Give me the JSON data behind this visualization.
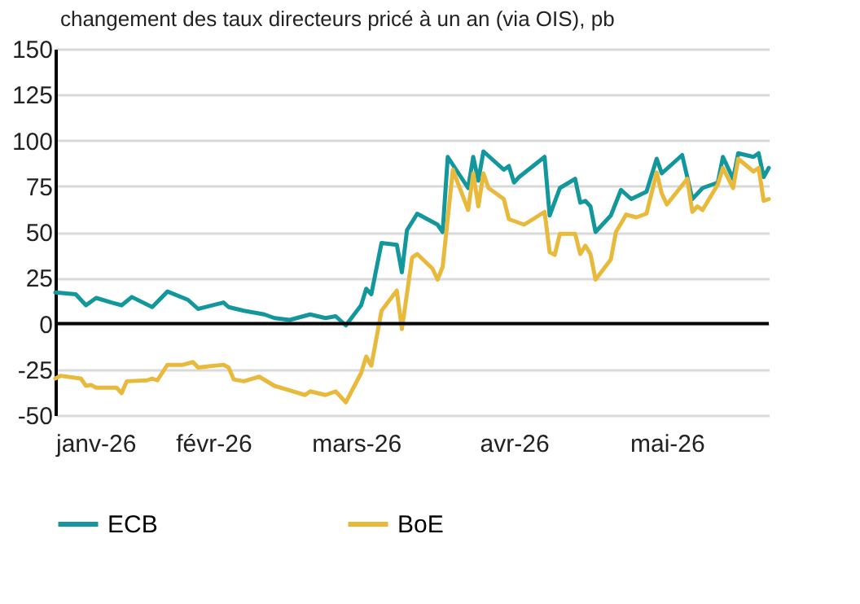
{
  "chart_data": {
    "type": "line",
    "title": "changement des taux directeurs pricé à un an (via OIS), pb",
    "xlim": [
      "2026-01-01",
      "2026-05-21"
    ],
    "xticks": [
      {
        "value": "2026-01-01",
        "label": "janv-26"
      },
      {
        "value": "2026-02-01",
        "label": "févr-26"
      },
      {
        "value": "2026-03-01",
        "label": "mars-26"
      },
      {
        "value": "2026-04-01",
        "label": "avr-26"
      },
      {
        "value": "2026-05-01",
        "label": "mai-26"
      }
    ],
    "ylim": [
      -50,
      150
    ],
    "yticks": [
      -50,
      -25,
      0,
      25,
      50,
      75,
      100,
      125,
      150
    ],
    "grid": "y",
    "legend": "bottom",
    "ref_lines": [
      {
        "axis": "y",
        "value": 0,
        "color": "#000000"
      }
    ],
    "series": [
      {
        "name": "ECB",
        "color": "#12979c",
        "x": [
          "2026-01-01",
          "2026-01-05",
          "2026-01-07",
          "2026-01-09",
          "2026-01-12",
          "2026-01-14",
          "2026-01-16",
          "2026-01-20",
          "2026-01-23",
          "2026-01-27",
          "2026-01-29",
          "2026-02-03",
          "2026-02-04",
          "2026-02-07",
          "2026-02-11",
          "2026-02-13",
          "2026-02-16",
          "2026-02-20",
          "2026-02-23",
          "2026-02-25",
          "2026-02-27",
          "2026-03-02",
          "2026-03-03",
          "2026-03-04",
          "2026-03-06",
          "2026-03-09",
          "2026-03-10",
          "2026-03-11",
          "2026-03-13",
          "2026-03-17",
          "2026-03-18",
          "2026-03-19",
          "2026-03-23",
          "2026-03-24",
          "2026-03-25",
          "2026-03-26",
          "2026-03-30",
          "2026-03-31",
          "2026-04-01",
          "2026-04-02",
          "2026-04-07",
          "2026-04-08",
          "2026-04-10",
          "2026-04-13",
          "2026-04-14",
          "2026-04-15",
          "2026-04-16",
          "2026-04-17",
          "2026-04-20",
          "2026-04-22",
          "2026-04-24",
          "2026-04-27",
          "2026-04-29",
          "2026-04-30",
          "2026-05-04",
          "2026-05-06",
          "2026-05-08",
          "2026-05-11",
          "2026-05-12",
          "2026-05-14",
          "2026-05-15",
          "2026-05-18",
          "2026-05-19",
          "2026-05-20",
          "2026-05-21"
        ],
        "values": [
          17,
          16,
          10,
          14,
          11.5,
          10,
          14.5,
          9,
          17.5,
          13,
          8,
          11.5,
          9,
          7,
          5,
          3,
          2,
          5,
          3,
          4,
          -1,
          10,
          19,
          16,
          44,
          43,
          28,
          51,
          60,
          54,
          50,
          91,
          74,
          91,
          78,
          94,
          84,
          86,
          77,
          80,
          91,
          59,
          74,
          79,
          66,
          67,
          64,
          50,
          59,
          73,
          68,
          72,
          90,
          82,
          92,
          68,
          74,
          77,
          91,
          79,
          93,
          91,
          93,
          80,
          85
        ]
      },
      {
        "name": "BoE",
        "color": "#e8b93a",
        "x": [
          "2026-01-01",
          "2026-01-02",
          "2026-01-06",
          "2026-01-07",
          "2026-01-08",
          "2026-01-09",
          "2026-01-13",
          "2026-01-14",
          "2026-01-15",
          "2026-01-19",
          "2026-01-20",
          "2026-01-21",
          "2026-01-23",
          "2026-01-26",
          "2026-01-28",
          "2026-01-29",
          "2026-02-03",
          "2026-02-04",
          "2026-02-05",
          "2026-02-07",
          "2026-02-10",
          "2026-02-13",
          "2026-02-16",
          "2026-02-19",
          "2026-02-20",
          "2026-02-23",
          "2026-02-25",
          "2026-02-27",
          "2026-03-02",
          "2026-03-03",
          "2026-03-04",
          "2026-03-06",
          "2026-03-09",
          "2026-03-10",
          "2026-03-12",
          "2026-03-13",
          "2026-03-16",
          "2026-03-17",
          "2026-03-18",
          "2026-03-20",
          "2026-03-23",
          "2026-03-24",
          "2026-03-25",
          "2026-03-26",
          "2026-03-27",
          "2026-03-30",
          "2026-03-31",
          "2026-04-03",
          "2026-04-07",
          "2026-04-08",
          "2026-04-09",
          "2026-04-10",
          "2026-04-13",
          "2026-04-14",
          "2026-04-15",
          "2026-04-16",
          "2026-04-17",
          "2026-04-20",
          "2026-04-21",
          "2026-04-23",
          "2026-04-25",
          "2026-04-27",
          "2026-04-29",
          "2026-04-30",
          "2026-05-01",
          "2026-05-05",
          "2026-05-06",
          "2026-05-07",
          "2026-05-08",
          "2026-05-11",
          "2026-05-12",
          "2026-05-14",
          "2026-05-15",
          "2026-05-18",
          "2026-05-19",
          "2026-05-20",
          "2026-05-21"
        ],
        "values": [
          -30,
          -28.5,
          -30,
          -34,
          -33.5,
          -35,
          -35,
          -38,
          -31.5,
          -31,
          -30,
          -31,
          -22.5,
          -22.5,
          -21,
          -24,
          -22.5,
          -24,
          -30.5,
          -31.5,
          -29,
          -34,
          -36.5,
          -39,
          -37,
          -39,
          -37,
          -43,
          -27,
          -18,
          -23,
          7,
          18,
          -3,
          36,
          38,
          30,
          24,
          31,
          84,
          62,
          82,
          64,
          82,
          74,
          68,
          57,
          54,
          61,
          39,
          37.5,
          49,
          49,
          38,
          42.5,
          38,
          24,
          35,
          50,
          59.5,
          58,
          60,
          82.5,
          71,
          65,
          79,
          61,
          64,
          62,
          76,
          85,
          74,
          90,
          83,
          85,
          67,
          68
        ]
      }
    ]
  }
}
